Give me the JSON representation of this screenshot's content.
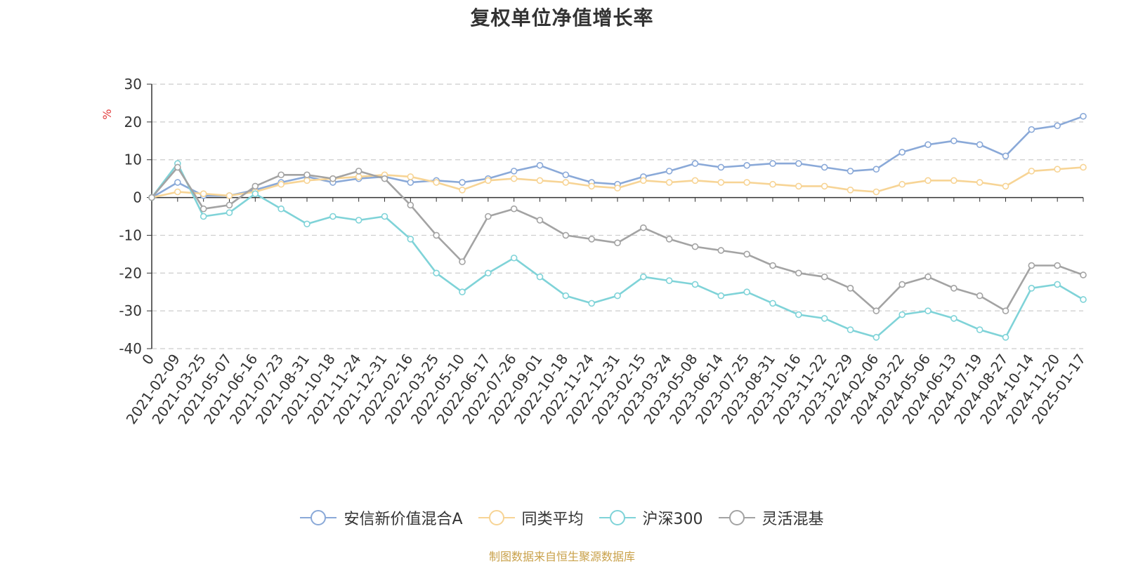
{
  "chart_data": {
    "type": "line",
    "title": "复权单位净值增长率",
    "xlabel": "",
    "ylabel": "%",
    "ylim": [
      -40,
      30
    ],
    "yticks": [
      "30",
      "20",
      "10",
      "0",
      "-10",
      "-20",
      "-30",
      "-40"
    ],
    "ytick_values": [
      30,
      20,
      10,
      0,
      -10,
      -20,
      -30,
      -40
    ],
    "grid": true,
    "legend_position": "bottom",
    "x": [
      "0",
      "2021-02-09",
      "2021-03-25",
      "2021-05-07",
      "2021-06-16",
      "2021-07-23",
      "2021-08-31",
      "2021-10-18",
      "2021-11-24",
      "2021-12-31",
      "2022-02-16",
      "2022-03-25",
      "2022-05-10",
      "2022-06-17",
      "2022-07-26",
      "2022-09-01",
      "2022-10-18",
      "2022-11-24",
      "2022-12-31",
      "2023-02-15",
      "2023-03-24",
      "2023-05-08",
      "2023-06-14",
      "2023-07-25",
      "2023-08-31",
      "2023-10-16",
      "2023-11-22",
      "2023-12-29",
      "2024-02-06",
      "2024-03-22",
      "2024-05-06",
      "2024-06-13",
      "2024-07-19",
      "2024-08-27",
      "2024-10-14",
      "2024-11-20",
      "2025-01-17"
    ],
    "series": [
      {
        "name": "安信新价值混合A",
        "color": "#8aa9d8",
        "values": [
          0,
          4,
          0.5,
          0.5,
          2,
          4,
          5.5,
          4,
          5,
          5.5,
          4,
          4.5,
          4,
          5,
          7,
          8.5,
          6,
          4,
          3.5,
          5.5,
          7,
          9,
          8,
          8.5,
          9,
          9,
          8,
          7,
          7.5,
          12,
          14,
          15,
          14,
          11,
          18,
          19,
          21.5
        ]
      },
      {
        "name": "同类平均",
        "color": "#f7d495",
        "values": [
          0,
          1.5,
          1,
          0.5,
          1.5,
          3.5,
          4.5,
          5,
          5.5,
          6,
          5.5,
          4,
          2,
          4.5,
          5,
          4.5,
          4,
          3,
          2.5,
          4.5,
          4,
          4.5,
          4,
          4,
          3.5,
          3,
          3,
          2,
          1.5,
          3.5,
          4.5,
          4.5,
          4,
          3,
          7,
          7.5,
          8
        ]
      },
      {
        "name": "沪深300",
        "color": "#7fd3d8",
        "values": [
          0,
          9,
          -5,
          -4,
          1,
          -3,
          -7,
          -5,
          -6,
          -5,
          -11,
          -20,
          -25,
          -20,
          -16,
          -21,
          -26,
          -28,
          -26,
          -21,
          -22,
          -23,
          -26,
          -25,
          -28,
          -31,
          -32,
          -35,
          -37,
          -31,
          -30,
          -32,
          -35,
          -37,
          -24,
          -23,
          -27
        ]
      },
      {
        "name": "灵活混基",
        "color": "#a3a3a3",
        "values": [
          0,
          8,
          -3,
          -2,
          3,
          6,
          6,
          5,
          7,
          5,
          -2,
          -10,
          -17,
          -5,
          -3,
          -6,
          -10,
          -11,
          -12,
          -8,
          -11,
          -13,
          -14,
          -15,
          -18,
          -20,
          -21,
          -24,
          -30,
          -23,
          -21,
          -24,
          -26,
          -30,
          -18,
          -18,
          -20.5
        ]
      }
    ]
  },
  "legend": {
    "items": [
      {
        "label": "安信新价值混合A"
      },
      {
        "label": "同类平均"
      },
      {
        "label": "沪深300"
      },
      {
        "label": "灵活混基"
      }
    ]
  },
  "footer": {
    "source": "制图数据来自恒生聚源数据库"
  }
}
